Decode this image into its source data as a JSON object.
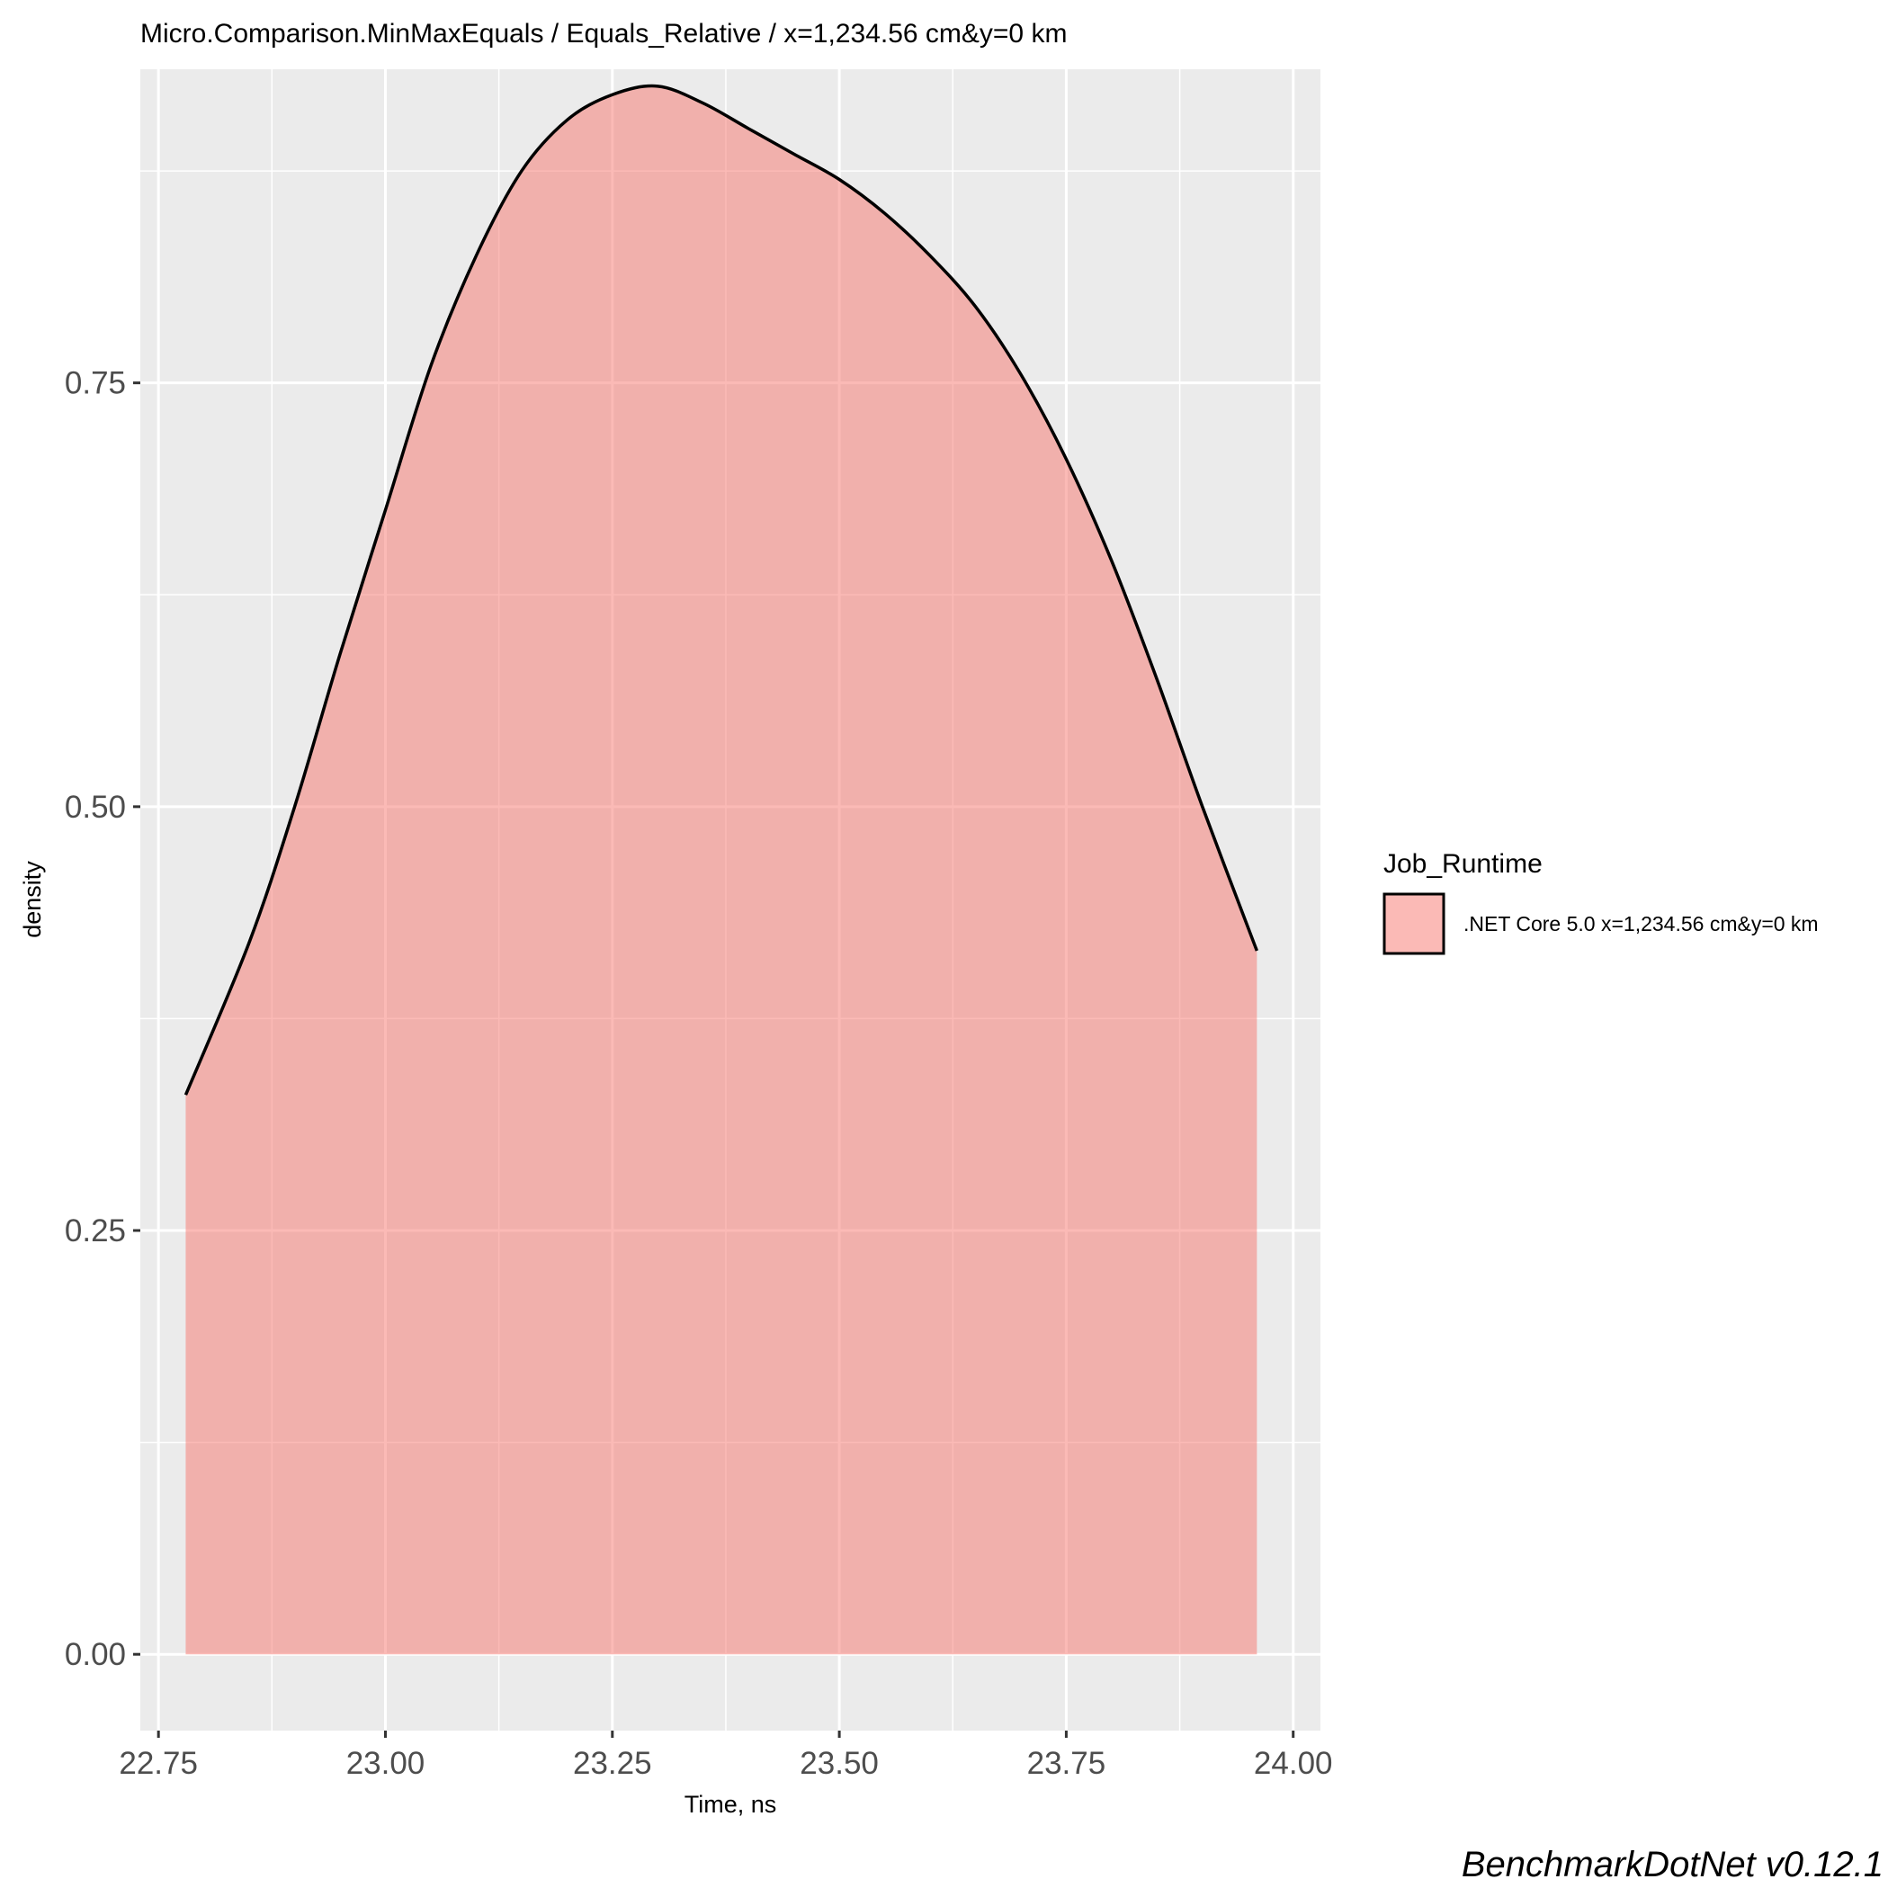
{
  "chart_data": {
    "type": "area",
    "title": "Micro.Comparison.MinMaxEquals / Equals_Relative / x=1,234.56 cm&y=0 km",
    "xlabel": "Time, ns",
    "ylabel": "density",
    "xlim": [
      22.73,
      24.03
    ],
    "ylim": [
      -0.045,
      0.935
    ],
    "x_ticks": [
      22.75,
      23.0,
      23.25,
      23.5,
      23.75,
      24.0
    ],
    "x_tick_labels": [
      "22.75",
      "23.00",
      "23.25",
      "23.50",
      "23.75",
      "24.00"
    ],
    "y_ticks": [
      0.0,
      0.25,
      0.5,
      0.75
    ],
    "y_tick_labels": [
      "0.00",
      "0.25",
      "0.50",
      "0.75"
    ],
    "grid": true,
    "legend": {
      "title": "Job_Runtime",
      "position": "right",
      "entries": [
        ".NET Core 5.0 x=1,234.56 cm&y=0 km"
      ]
    },
    "series": [
      {
        "name": ".NET Core 5.0 x=1,234.56 cm&y=0 km",
        "fill": "#F8766D",
        "fill_opacity": 0.5,
        "line_color": "#000000",
        "x": [
          22.78,
          22.85,
          22.9,
          22.95,
          23.0,
          23.05,
          23.1,
          23.15,
          23.2,
          23.25,
          23.3,
          23.35,
          23.4,
          23.45,
          23.5,
          23.55,
          23.6,
          23.65,
          23.7,
          23.75,
          23.8,
          23.85,
          23.9,
          23.96
        ],
        "y": [
          0.33,
          0.42,
          0.5,
          0.59,
          0.675,
          0.76,
          0.825,
          0.875,
          0.905,
          0.92,
          0.925,
          0.915,
          0.9,
          0.885,
          0.87,
          0.85,
          0.825,
          0.795,
          0.755,
          0.705,
          0.645,
          0.575,
          0.5,
          0.415
        ]
      }
    ]
  },
  "footer": {
    "caption": "BenchmarkDotNet v0.12.1"
  }
}
